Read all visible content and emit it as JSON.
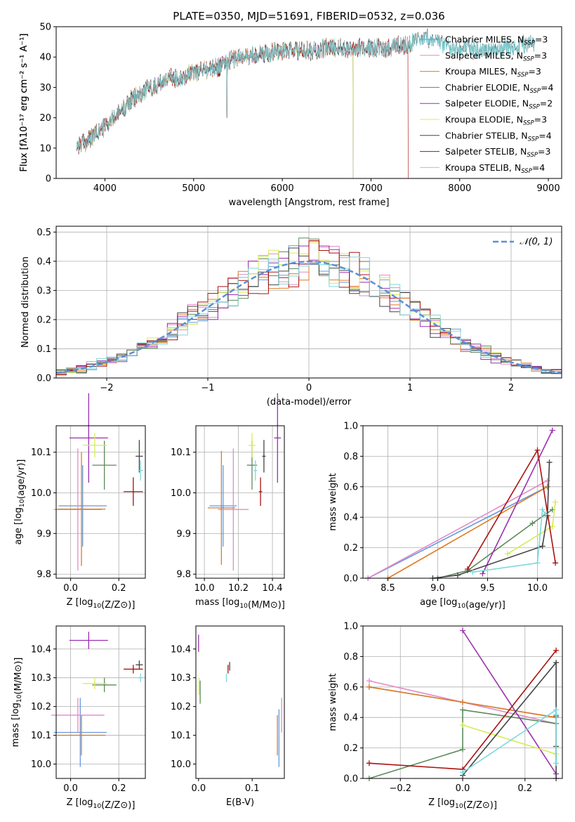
{
  "figure_title": "PLATE=0350, MJD=51691, FIBERID=0532, z=0.036",
  "colors": {
    "chabrier_miles": "#6699dd",
    "salpeter_miles": "#e08cc8",
    "kroupa_miles": "#e07b20",
    "chabrier_elodie": "#5c8a5c",
    "salpeter_elodie": "#9b30b0",
    "kroupa_elodie": "#d6ec55",
    "chabrier_stelib": "#444444",
    "salpeter_stelib": "#aa1111",
    "kroupa_stelib": "#7dd8dd",
    "normal_curve": "#5b8fd8",
    "grid": "#b0b0b0"
  },
  "chart_data": [
    {
      "id": "spectrum",
      "type": "line",
      "title": "PLATE=0350, MJD=51691, FIBERID=0532, z=0.036",
      "xlabel": "wavelength [Angstrom, rest frame]",
      "ylabel": "Flux [fλ10⁻¹⁷ erg cm⁻² s⁻¹ A⁻¹]",
      "xlim": [
        3450,
        9150
      ],
      "ylim": [
        0,
        50
      ],
      "xticks": [
        4000,
        5000,
        6000,
        7000,
        8000,
        9000
      ],
      "yticks": [
        0,
        10,
        20,
        30,
        40,
        50
      ],
      "grid": false,
      "legend_position": "right",
      "continuum": {
        "x": [
          3680,
          3800,
          3900,
          4000,
          4100,
          4200,
          4300,
          4400,
          4500,
          4600,
          4700,
          4800,
          4900,
          5000,
          5100,
          5200,
          5300,
          5400,
          5500,
          5600,
          5700,
          5800,
          5900,
          6000,
          6100,
          6200,
          6300,
          6400,
          6500,
          6600,
          6700,
          6800,
          6900,
          7000,
          7100,
          7200,
          7300,
          7400,
          7500,
          7600,
          7700,
          7800,
          7900,
          8000,
          8100,
          8200,
          8300,
          8400,
          8500,
          8600,
          8700,
          8800,
          8900
        ],
        "y": [
          11,
          12,
          15,
          17,
          20,
          23,
          26,
          28,
          30,
          31,
          33,
          33,
          34,
          35,
          36,
          36,
          37,
          39,
          40,
          40,
          41,
          41,
          42,
          42,
          42,
          42,
          42,
          42,
          43,
          43,
          43,
          43,
          43,
          43,
          43,
          43,
          44,
          44,
          45,
          46,
          46,
          44,
          43,
          43,
          43,
          42,
          42,
          43,
          43,
          43,
          44,
          44,
          44
        ]
      },
      "series": [
        {
          "name": "Chabrier MILES",
          "nssp": "3",
          "color_key": "chabrier_miles",
          "x_range": [
            3680,
            7540
          ]
        },
        {
          "name": "Salpeter MILES",
          "nssp": "3",
          "color_key": "salpeter_miles",
          "x_range": [
            3680,
            7540
          ]
        },
        {
          "name": "Kroupa MILES",
          "nssp": "3",
          "color_key": "kroupa_miles",
          "x_range": [
            3680,
            7540
          ]
        },
        {
          "name": "Chabrier ELODIE",
          "nssp": "4",
          "color_key": "chabrier_elodie",
          "x_range": [
            3680,
            6800
          ],
          "drop_at": 6800
        },
        {
          "name": "Salpeter ELODIE",
          "nssp": "2",
          "color_key": "salpeter_elodie",
          "x_range": [
            3680,
            6800
          ],
          "drop_at": 6800
        },
        {
          "name": "Kroupa ELODIE",
          "nssp": "3",
          "color_key": "kroupa_elodie",
          "x_range": [
            3680,
            6800
          ],
          "drop_at": 6800
        },
        {
          "name": "Chabrier STELIB",
          "nssp": "4",
          "color_key": "chabrier_stelib",
          "x_range": [
            3680,
            8850
          ]
        },
        {
          "name": "Salpeter STELIB",
          "nssp": "3",
          "color_key": "salpeter_stelib",
          "x_range": [
            3680,
            7420
          ],
          "drop_at": 7420
        },
        {
          "name": "Kroupa STELIB",
          "nssp": "4",
          "color_key": "kroupa_stelib",
          "x_range": [
            3680,
            8850
          ]
        }
      ]
    },
    {
      "id": "residuals",
      "type": "histogram",
      "xlabel": "(data-model)/error",
      "ylabel": "Normed distribution",
      "xlim": [
        -2.5,
        2.5
      ],
      "ylim": [
        0,
        0.52
      ],
      "xticks": [
        -2,
        -1,
        0,
        1,
        2
      ],
      "yticks": [
        0.0,
        0.1,
        0.2,
        0.3,
        0.4,
        0.5
      ],
      "bin_edges_range": [
        -2.5,
        2.5
      ],
      "bin_width": 0.1,
      "reference_curve": {
        "name": "𝒩(0, 1)",
        "mean": 0,
        "sigma": 1,
        "style": "dashed"
      },
      "grid": true,
      "legend_position": "top-right"
    },
    {
      "id": "age_vs_z",
      "type": "scatter",
      "xlabel": "Z [log10(Z/Z⊙)]",
      "ylabel": "age  [log10(age/yr)]",
      "xlim": [
        -0.06,
        0.31
      ],
      "ylim": [
        9.79,
        10.165
      ],
      "xticks": [
        0.0,
        0.2
      ],
      "xtick_labels": [
        "0.0",
        "0.2"
      ],
      "yticks": [
        9.8,
        9.9,
        10.0,
        10.1
      ],
      "ytick_labels": [
        "9.8",
        "9.9",
        "10.0",
        "10.1"
      ],
      "grid": true,
      "points": [
        {
          "series": "Chabrier MILES",
          "x": 0.05,
          "xerr": 0.1,
          "y": 9.968,
          "yerr": 0.1
        },
        {
          "series": "Salpeter MILES",
          "x": 0.03,
          "xerr": 0.1,
          "y": 9.959,
          "yerr": 0.15
        },
        {
          "series": "Kroupa MILES",
          "x": 0.045,
          "xerr": 0.1,
          "y": 9.96,
          "yerr": 0.14
        },
        {
          "series": "Chabrier ELODIE",
          "x": 0.14,
          "xerr": 0.05,
          "y": 10.068,
          "yerr": 0.06
        },
        {
          "series": "Salpeter ELODIE",
          "x": 0.075,
          "xerr": 0.08,
          "y": 10.135,
          "yerr": 0.11
        },
        {
          "series": "Kroupa ELODIE",
          "x": 0.1,
          "xerr": 0.05,
          "y": 10.117,
          "yerr": 0.03
        },
        {
          "series": "Chabrier STELIB",
          "x": 0.285,
          "xerr": 0.015,
          "y": 10.09,
          "yerr": 0.04
        },
        {
          "series": "Salpeter STELIB",
          "x": 0.26,
          "xerr": 0.04,
          "y": 10.003,
          "yerr": 0.035
        },
        {
          "series": "Kroupa STELIB",
          "x": 0.29,
          "xerr": 0.01,
          "y": 10.055,
          "yerr": 0.025
        }
      ]
    },
    {
      "id": "age_vs_mass",
      "type": "scatter",
      "xlabel": "mass [log10(M/M⊙)]",
      "ylabel": "",
      "xlim": [
        9.95,
        10.47
      ],
      "ylim": [
        9.79,
        10.165
      ],
      "xticks": [
        10.0,
        10.2,
        10.4
      ],
      "xtick_labels": [
        "10.0",
        "10.2",
        "10.4"
      ],
      "yticks": [
        9.8,
        9.9,
        10.0,
        10.1
      ],
      "ytick_labels": [
        "9.8",
        "9.9",
        "10.0",
        "10.1"
      ],
      "grid": true,
      "points": [
        {
          "series": "Chabrier MILES",
          "x": 10.11,
          "xerr": 0.08,
          "y": 9.968,
          "yerr": 0.1
        },
        {
          "series": "Salpeter MILES",
          "x": 10.17,
          "xerr": 0.09,
          "y": 9.959,
          "yerr": 0.15
        },
        {
          "series": "Kroupa MILES",
          "x": 10.1,
          "xerr": 0.08,
          "y": 9.963,
          "yerr": 0.14
        },
        {
          "series": "Chabrier ELODIE",
          "x": 10.28,
          "xerr": 0.03,
          "y": 10.068,
          "yerr": 0.06
        },
        {
          "series": "Salpeter ELODIE",
          "x": 10.43,
          "xerr": 0.02,
          "y": 10.135,
          "yerr": 0.11
        },
        {
          "series": "Kroupa ELODIE",
          "x": 10.28,
          "xerr": 0.02,
          "y": 10.117,
          "yerr": 0.03
        },
        {
          "series": "Chabrier STELIB",
          "x": 10.35,
          "xerr": 0.01,
          "y": 10.09,
          "yerr": 0.04
        },
        {
          "series": "Salpeter STELIB",
          "x": 10.33,
          "xerr": 0.01,
          "y": 10.003,
          "yerr": 0.035
        },
        {
          "series": "Kroupa STELIB",
          "x": 10.3,
          "xerr": 0.01,
          "y": 10.055,
          "yerr": 0.025
        }
      ]
    },
    {
      "id": "weight_vs_age",
      "type": "line",
      "xlabel": "age  [log10(age/yr)]",
      "ylabel": "mass weight",
      "xlim": [
        8.25,
        10.25
      ],
      "ylim": [
        0,
        1.0
      ],
      "xticks": [
        8.5,
        9.0,
        9.5,
        10.0
      ],
      "xtick_labels": [
        "8.5",
        "9.0",
        "9.5",
        "10.0"
      ],
      "yticks": [
        0.0,
        0.2,
        0.4,
        0.6,
        0.8,
        1.0
      ],
      "ytick_labels": [
        "0.0",
        "0.2",
        "0.4",
        "0.6",
        "0.8",
        "1.0"
      ],
      "grid": true,
      "series": [
        {
          "name": "Chabrier MILES",
          "x": [
            8.3,
            10.1
          ],
          "y": [
            0.0,
            0.6
          ]
        },
        {
          "name": "Salpeter MILES",
          "x": [
            8.3,
            10.1
          ],
          "y": [
            0.0,
            0.64
          ]
        },
        {
          "name": "Kroupa MILES",
          "x": [
            8.5,
            10.1
          ],
          "y": [
            0.0,
            0.6
          ]
        },
        {
          "name": "Chabrier ELODIE",
          "x": [
            9.0,
            9.3,
            9.95,
            10.15
          ],
          "y": [
            0.0,
            0.05,
            0.36,
            0.45
          ]
        },
        {
          "name": "Salpeter ELODIE",
          "x": [
            9.45,
            10.15
          ],
          "y": [
            0.03,
            0.97
          ]
        },
        {
          "name": "Kroupa ELODIE",
          "x": [
            9.7,
            10.15,
            10.18
          ],
          "y": [
            0.16,
            0.34,
            0.5
          ]
        },
        {
          "name": "Chabrier STELIB",
          "x": [
            8.95,
            9.2,
            10.05,
            10.1,
            10.12
          ],
          "y": [
            0.0,
            0.02,
            0.21,
            0.41,
            0.76
          ]
        },
        {
          "name": "Salpeter STELIB",
          "x": [
            9.3,
            10.0,
            10.18
          ],
          "y": [
            0.06,
            0.84,
            0.1
          ]
        },
        {
          "name": "Kroupa STELIB",
          "x": [
            9.35,
            10.0,
            10.05,
            10.08
          ],
          "y": [
            0.04,
            0.1,
            0.45,
            0.42
          ]
        }
      ]
    },
    {
      "id": "mass_vs_z",
      "type": "scatter",
      "xlabel": "Z [log10(Z/Z⊙)]",
      "ylabel": "mass [log10(M/M⊙)]",
      "xlim": [
        -0.06,
        0.31
      ],
      "ylim": [
        9.95,
        10.48
      ],
      "xticks": [
        0.0,
        0.2
      ],
      "xtick_labels": [
        "0.0",
        "0.2"
      ],
      "yticks": [
        10.0,
        10.1,
        10.2,
        10.3,
        10.4
      ],
      "ytick_labels": [
        "10.0",
        "10.1",
        "10.2",
        "10.3",
        "10.4"
      ],
      "grid": true,
      "points": [
        {
          "series": "Chabrier MILES",
          "x": 0.04,
          "xerr": 0.11,
          "y": 10.11,
          "yerr": 0.12
        },
        {
          "series": "Salpeter MILES",
          "x": 0.03,
          "xerr": 0.11,
          "y": 10.17,
          "yerr": 0.06
        },
        {
          "series": "Kroupa MILES",
          "x": 0.045,
          "xerr": 0.1,
          "y": 10.1,
          "yerr": 0.07
        },
        {
          "series": "Chabrier ELODIE",
          "x": 0.14,
          "xerr": 0.05,
          "y": 10.275,
          "yerr": 0.025
        },
        {
          "series": "Salpeter ELODIE",
          "x": 0.075,
          "xerr": 0.08,
          "y": 10.43,
          "yerr": 0.03
        },
        {
          "series": "Kroupa ELODIE",
          "x": 0.1,
          "xerr": 0.05,
          "y": 10.28,
          "yerr": 0.02
        },
        {
          "series": "Chabrier STELIB",
          "x": 0.285,
          "xerr": 0.015,
          "y": 10.345,
          "yerr": 0.015
        },
        {
          "series": "Salpeter STELIB",
          "x": 0.26,
          "xerr": 0.04,
          "y": 10.33,
          "yerr": 0.015
        },
        {
          "series": "Kroupa STELIB",
          "x": 0.29,
          "xerr": 0.01,
          "y": 10.3,
          "yerr": 0.015
        }
      ]
    },
    {
      "id": "mass_vs_ebv",
      "type": "scatter",
      "xlabel": "E(B-V)",
      "ylabel": "",
      "xlim": [
        -0.005,
        0.16
      ],
      "ylim": [
        9.95,
        10.48
      ],
      "xticks": [
        0.0,
        0.1
      ],
      "xtick_labels": [
        "0.0",
        "0.1"
      ],
      "yticks": [
        10.0,
        10.1,
        10.2,
        10.3,
        10.4
      ],
      "ytick_labels": [
        "10.0",
        "10.1",
        "10.2",
        "10.3",
        "10.4"
      ],
      "grid": false,
      "points": [
        {
          "series": "Chabrier MILES",
          "x": 0.15,
          "y": 10.09,
          "yerr": 0.1
        },
        {
          "series": "Salpeter MILES",
          "x": 0.155,
          "y": 10.17,
          "yerr": 0.06
        },
        {
          "series": "Kroupa MILES",
          "x": 0.147,
          "y": 10.1,
          "yerr": 0.07
        },
        {
          "series": "Chabrier ELODIE",
          "x": 0.003,
          "y": 10.25,
          "yerr": 0.04
        },
        {
          "series": "Salpeter ELODIE",
          "x": 0.0,
          "y": 10.42,
          "yerr": 0.03
        },
        {
          "series": "Kroupa ELODIE",
          "x": 0.001,
          "y": 10.27,
          "yerr": 0.03
        },
        {
          "series": "Chabrier STELIB",
          "x": 0.058,
          "y": 10.34,
          "yerr": 0.015
        },
        {
          "series": "Salpeter STELIB",
          "x": 0.055,
          "y": 10.33,
          "yerr": 0.015
        },
        {
          "series": "Kroupa STELIB",
          "x": 0.052,
          "y": 10.3,
          "yerr": 0.015
        }
      ]
    },
    {
      "id": "weight_vs_z",
      "type": "line",
      "xlabel": "Z [log10(Z/Z⊙)]",
      "ylabel": "mass weight",
      "xlim": [
        -0.32,
        0.32
      ],
      "ylim": [
        0,
        1.0
      ],
      "xticks": [
        -0.2,
        0.0,
        0.2
      ],
      "xtick_labels": [
        "−0.2",
        "0.0",
        "0.2"
      ],
      "yticks": [
        0.0,
        0.2,
        0.4,
        0.6,
        0.8,
        1.0
      ],
      "ytick_labels": [
        "0.0",
        "0.2",
        "0.4",
        "0.6",
        "0.8",
        "1.0"
      ],
      "grid": true,
      "series": [
        {
          "name": "Chabrier MILES",
          "x": [
            -0.3,
            0.0,
            0.3
          ],
          "y": [
            0.6,
            0.5,
            0.4
          ]
        },
        {
          "name": "Salpeter MILES",
          "x": [
            -0.3,
            0.0,
            0.3
          ],
          "y": [
            0.64,
            0.5,
            0.36
          ]
        },
        {
          "name": "Kroupa MILES",
          "x": [
            -0.3,
            0.0,
            0.3
          ],
          "y": [
            0.6,
            0.5,
            0.4
          ]
        },
        {
          "name": "Chabrier ELODIE",
          "x": [
            -0.3,
            0.0,
            0.0,
            0.3
          ],
          "y": [
            0.0,
            0.19,
            0.45,
            0.36
          ]
        },
        {
          "name": "Salpeter ELODIE",
          "x": [
            0.0,
            0.3
          ],
          "y": [
            0.97,
            0.03
          ]
        },
        {
          "name": "Kroupa ELODIE",
          "x": [
            0.0,
            0.3
          ],
          "y": [
            0.35,
            0.16
          ]
        },
        {
          "name": "Chabrier STELIB",
          "x": [
            0.0,
            0.3,
            0.3,
            0.3,
            0.3
          ],
          "y": [
            0.02,
            0.76,
            0.41,
            0.21,
            0.0
          ]
        },
        {
          "name": "Salpeter STELIB",
          "x": [
            -0.3,
            0.0,
            0.3
          ],
          "y": [
            0.1,
            0.06,
            0.84
          ]
        },
        {
          "name": "Kroupa STELIB",
          "x": [
            0.0,
            0.3,
            0.3,
            0.3
          ],
          "y": [
            0.04,
            0.45,
            0.42,
            0.1
          ]
        }
      ]
    }
  ]
}
